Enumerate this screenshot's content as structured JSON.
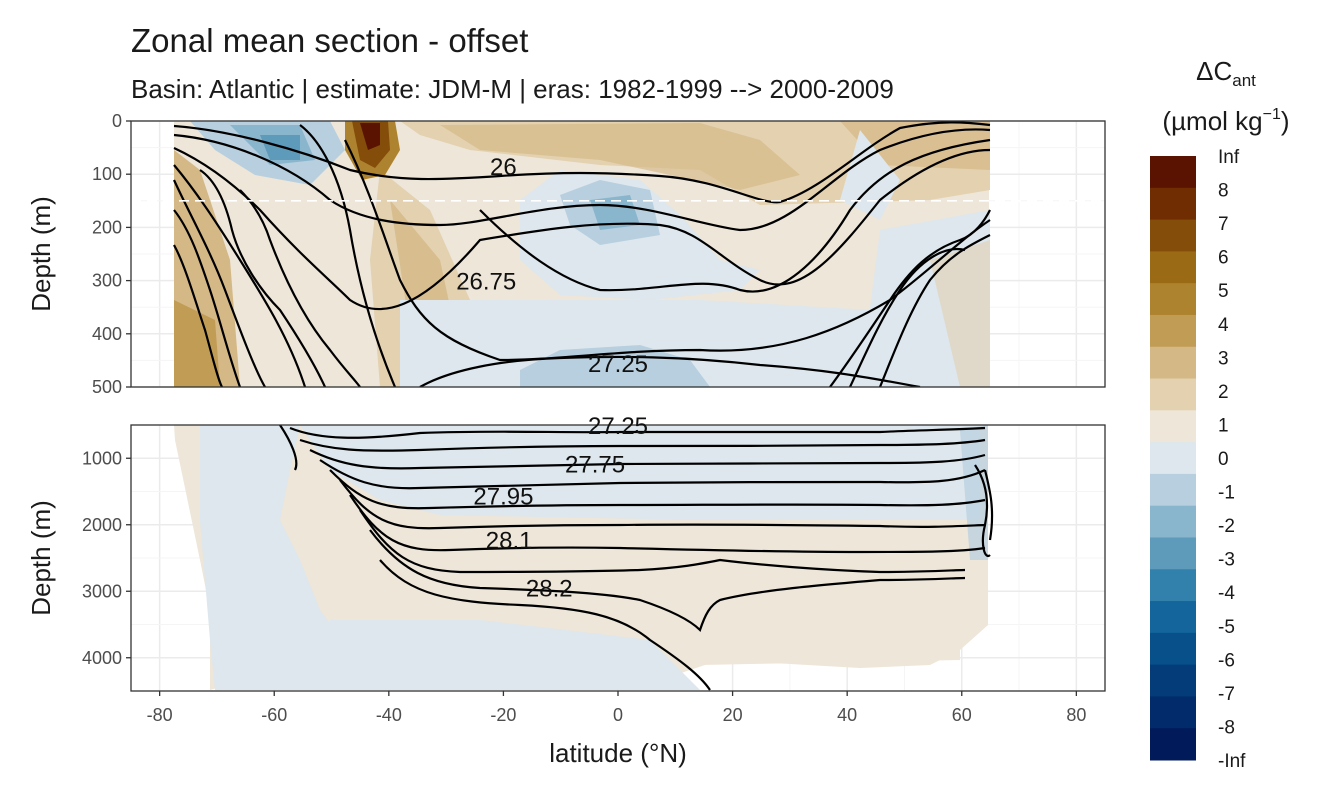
{
  "header": {
    "title": "Zonal mean section - offset",
    "subtitle": "Basin: Atlantic | estimate: JDM-M | eras: 1982-1999 --> 2000-2009"
  },
  "chart_data": {
    "type": "heatmap",
    "xlabel": "latitude (°N)",
    "ylabel": "Depth (m)",
    "xlim": [
      -85,
      85
    ],
    "x_ticks": [
      -80,
      -60,
      -40,
      -20,
      0,
      20,
      40,
      60,
      80
    ],
    "x_tick_labels": [
      "-80",
      "-60",
      "-40",
      "-20",
      "0",
      "20",
      "40",
      "60",
      "80"
    ],
    "data_lat_range": [
      -78,
      64
    ],
    "panels": [
      {
        "name": "upper",
        "ylim": [
          0,
          500
        ],
        "y_ticks": [
          0,
          100,
          200,
          300,
          400,
          500
        ],
        "y_tick_labels": [
          "0",
          "100",
          "200",
          "300",
          "400",
          "500"
        ],
        "reference_depth": 150,
        "contour_labels": [
          {
            "text": "26",
            "lat": -20,
            "depth": 85
          },
          {
            "text": "26.75",
            "lat": -23,
            "depth": 300
          },
          {
            "text": "27.25",
            "lat": 0,
            "depth": 455
          }
        ]
      },
      {
        "name": "lower",
        "ylim": [
          500,
          4500
        ],
        "y_ticks": [
          1000,
          2000,
          3000,
          4000
        ],
        "y_tick_labels": [
          "1000",
          "2000",
          "3000",
          "4000"
        ],
        "contour_labels": [
          {
            "text": "27.25",
            "lat": 0,
            "depth": 500
          },
          {
            "text": "27.75",
            "lat": -4,
            "depth": 1080
          },
          {
            "text": "27.95",
            "lat": -20,
            "depth": 1560
          },
          {
            "text": "28.1",
            "lat": -19,
            "depth": 2220
          },
          {
            "text": "28.2",
            "lat": -12,
            "depth": 2940
          }
        ]
      }
    ],
    "legend": {
      "title": "ΔC",
      "title_sub": "ant",
      "units": "(µmol kg",
      "units_sup": "−1",
      "units_end": ")",
      "position": "right",
      "breaks": [
        "Inf",
        "8",
        "7",
        "6",
        "5",
        "4",
        "3",
        "2",
        "1",
        "0",
        "-1",
        "-2",
        "-3",
        "-4",
        "-5",
        "-6",
        "-7",
        "-8",
        "-Inf"
      ],
      "colors": [
        "#5a1300",
        "#712d02",
        "#844d0a",
        "#9b6a15",
        "#ae832f",
        "#c19c55",
        "#d4b886",
        "#e3d1b0",
        "#ede6d9",
        "#dde7ed",
        "#b7cfdf",
        "#8ab6cd",
        "#5e9bbb",
        "#3281ac",
        "#13659b",
        "#07508a",
        "#033c78",
        "#012b6a",
        "#001a5a"
      ]
    },
    "colors": {
      "panel_bg": "#ffffff",
      "grid_major": "#ebebeb",
      "grid_minor": "#f5f5f5",
      "frame": "#333333",
      "contour": "#000000",
      "ref_line": "#ffffff"
    }
  }
}
